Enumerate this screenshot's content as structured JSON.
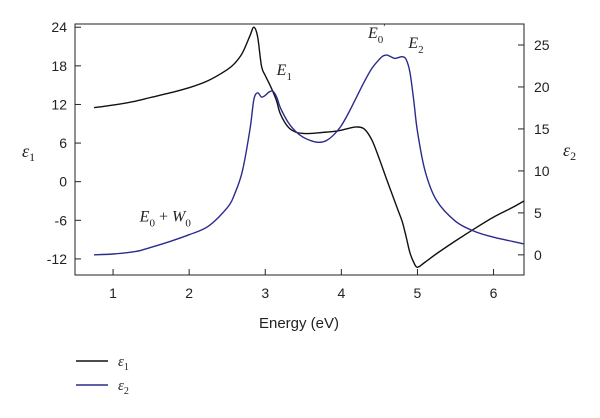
{
  "chart_data": {
    "type": "line",
    "xlabel": "Energy (eV)",
    "ylabel_left": {
      "symbol": "ε",
      "sub": "1"
    },
    "ylabel_right": {
      "symbol": "ε",
      "sub": "2"
    },
    "xlim": [
      0.5,
      6.4
    ],
    "ylim_left": [
      -14.5,
      24.5
    ],
    "ylim_right": [
      -2.4,
      27.5
    ],
    "x_ticks": [
      1,
      2,
      3,
      4,
      5,
      6
    ],
    "y_left_ticks": [
      -12,
      -6,
      0,
      6,
      12,
      18,
      24
    ],
    "y_right_ticks": [
      0,
      5,
      10,
      15,
      20,
      25
    ],
    "grid": false,
    "legend_position": "bottom-left",
    "annotations": [
      {
        "parts": [
          {
            "t": "E",
            "s": ""
          },
          {
            "t": "1",
            "s": "sub"
          }
        ],
        "x": 3.15,
        "y_left": 16.6
      },
      {
        "parts": [
          {
            "t": "E",
            "s": ""
          },
          {
            "t": "0",
            "s": "sub"
          },
          {
            "t": "′",
            "s": "sup"
          }
        ],
        "x": 4.35,
        "y_left": 22.3
      },
      {
        "parts": [
          {
            "t": "E",
            "s": ""
          },
          {
            "t": "2",
            "s": "sub"
          }
        ],
        "x": 4.88,
        "y_left": 20.8
      },
      {
        "parts": [
          {
            "t": "E",
            "s": ""
          },
          {
            "t": "0",
            "s": "sub"
          },
          {
            "t": " + ",
            "s": "plain"
          },
          {
            "t": "W",
            "s": ""
          },
          {
            "t": "0",
            "s": "sub"
          }
        ],
        "x": 1.35,
        "y_left": -6.2
      }
    ],
    "series": [
      {
        "name": "ε1",
        "name_parts": {
          "symbol": "ε",
          "sub": "1"
        },
        "axis": "left",
        "color": "#111111",
        "x": [
          0.75,
          1.0,
          1.25,
          1.5,
          1.75,
          2.0,
          2.25,
          2.5,
          2.6,
          2.7,
          2.8,
          2.85,
          2.9,
          2.95,
          3.0,
          3.05,
          3.1,
          3.15,
          3.2,
          3.3,
          3.4,
          3.5,
          3.6,
          3.7,
          3.8,
          3.9,
          4.0,
          4.1,
          4.2,
          4.3,
          4.4,
          4.5,
          4.6,
          4.7,
          4.75,
          4.8,
          4.85,
          4.9,
          4.95,
          5.0,
          5.1,
          5.25,
          5.5,
          5.75,
          6.0,
          6.25,
          6.4
        ],
        "y": [
          11.5,
          11.9,
          12.4,
          13.1,
          13.8,
          14.6,
          15.7,
          17.4,
          18.4,
          20.0,
          22.7,
          24.0,
          22.5,
          18.0,
          16.5,
          15.3,
          14.0,
          12.5,
          10.5,
          8.5,
          7.7,
          7.5,
          7.5,
          7.6,
          7.7,
          7.8,
          8.0,
          8.3,
          8.5,
          8.2,
          6.5,
          3.5,
          0.2,
          -3.0,
          -4.6,
          -6.2,
          -8.5,
          -11.0,
          -12.5,
          -13.3,
          -12.5,
          -11.2,
          -9.2,
          -7.3,
          -5.5,
          -4.0,
          -3.0
        ]
      },
      {
        "name": "ε2",
        "name_parts": {
          "symbol": "ε",
          "sub": "2"
        },
        "axis": "right",
        "color": "#2b2b8c",
        "x": [
          0.75,
          1.0,
          1.3,
          1.5,
          1.75,
          2.0,
          2.25,
          2.5,
          2.6,
          2.7,
          2.8,
          2.85,
          2.9,
          2.95,
          3.0,
          3.05,
          3.1,
          3.15,
          3.2,
          3.3,
          3.4,
          3.5,
          3.6,
          3.7,
          3.8,
          3.9,
          4.0,
          4.1,
          4.2,
          4.3,
          4.4,
          4.5,
          4.55,
          4.6,
          4.65,
          4.7,
          4.75,
          4.8,
          4.85,
          4.9,
          4.95,
          5.0,
          5.1,
          5.25,
          5.5,
          5.75,
          6.0,
          6.25,
          6.4
        ],
        "y": [
          0.0,
          0.1,
          0.4,
          0.9,
          1.6,
          2.4,
          3.4,
          5.6,
          7.3,
          10.0,
          15.0,
          18.5,
          19.3,
          18.8,
          19.0,
          19.4,
          19.5,
          18.8,
          17.5,
          15.8,
          14.7,
          14.0,
          13.6,
          13.4,
          13.6,
          14.3,
          15.4,
          17.0,
          18.8,
          20.6,
          22.2,
          23.3,
          23.7,
          23.8,
          23.6,
          23.4,
          23.5,
          23.6,
          23.3,
          21.8,
          18.5,
          14.7,
          10.0,
          6.5,
          4.0,
          2.8,
          2.1,
          1.6,
          1.3
        ]
      }
    ]
  }
}
